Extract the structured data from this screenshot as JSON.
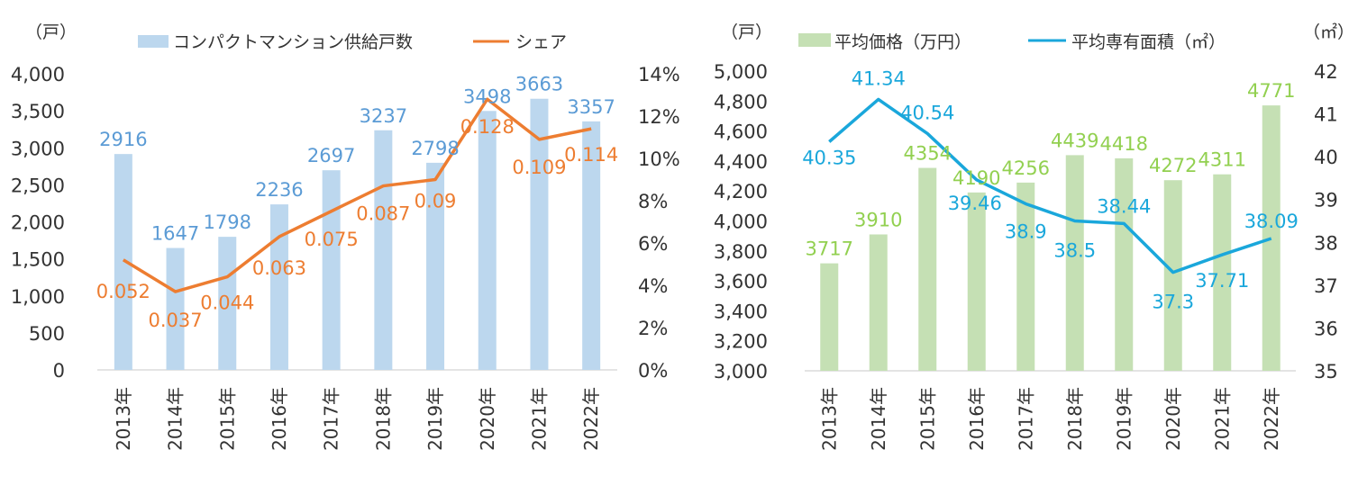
{
  "chart_data": [
    {
      "type": "bar+line",
      "categories": [
        "2013年",
        "2014年",
        "2015年",
        "2016年",
        "2017年",
        "2018年",
        "2019年",
        "2020年",
        "2021年",
        "2022年"
      ],
      "left_unit": "（戸）",
      "left_ticks": [
        "4,000",
        "3,500",
        "3,000",
        "2,500",
        "2,000",
        "1,500",
        "1,000",
        "500",
        "0"
      ],
      "left_ylim": [
        0,
        4000
      ],
      "right_ticks": [
        "14%",
        "12%",
        "10%",
        "8%",
        "6%",
        "4%",
        "2%",
        "0%"
      ],
      "right_ylim": [
        0,
        0.14
      ],
      "series": [
        {
          "name": "コンパクトマンション供給戸数",
          "type": "bar",
          "axis": "left",
          "color": "#bcd7ee",
          "label_color": "#5b9bd5",
          "values": [
            2916,
            1647,
            1798,
            2236,
            2697,
            3237,
            2798,
            3498,
            3663,
            3357
          ],
          "labels": [
            "2916",
            "1647",
            "1798",
            "2236",
            "2697",
            "3237",
            "2798",
            "3498",
            "3663",
            "3357"
          ]
        },
        {
          "name": "シェア",
          "type": "line",
          "axis": "right",
          "color": "#ed7d31",
          "label_color": "#ed7d31",
          "values": [
            0.052,
            0.037,
            0.044,
            0.063,
            0.075,
            0.087,
            0.09,
            0.128,
            0.109,
            0.114
          ],
          "labels": [
            "0.052",
            "0.037",
            "0.044",
            "0.063",
            "0.075",
            "0.087",
            "0.09",
            "0.128",
            "0.109",
            "0.114"
          ]
        }
      ],
      "grid": false,
      "legend_placement": "top"
    },
    {
      "type": "bar+line",
      "categories": [
        "2013年",
        "2014年",
        "2015年",
        "2016年",
        "2017年",
        "2018年",
        "2019年",
        "2020年",
        "2021年",
        "2022年"
      ],
      "left_unit": "（戸）",
      "right_unit": "（㎡）",
      "left_ticks": [
        "5,000",
        "4,800",
        "4,600",
        "4,400",
        "4,200",
        "4,000",
        "3,800",
        "3,600",
        "3,400",
        "3,200",
        "3,000"
      ],
      "left_ylim": [
        3000,
        5000
      ],
      "right_ticks": [
        "42",
        "41",
        "40",
        "39",
        "38",
        "37",
        "36",
        "35"
      ],
      "right_ylim": [
        35,
        42
      ],
      "series": [
        {
          "name": "平均価格（万円）",
          "type": "bar",
          "axis": "left",
          "color": "#c5e0b4",
          "label_color": "#92d050",
          "values": [
            3717,
            3910,
            4354,
            4190,
            4256,
            4439,
            4418,
            4272,
            4311,
            4771
          ],
          "labels": [
            "3717",
            "3910",
            "4354",
            "4190",
            "4256",
            "4439",
            "4418",
            "4272",
            "4311",
            "4771"
          ]
        },
        {
          "name": "平均専有面積（㎡）",
          "type": "line",
          "axis": "right",
          "color": "#1aa7db",
          "label_color": "#1aa7db",
          "values": [
            40.35,
            41.34,
            40.54,
            39.46,
            38.9,
            38.5,
            38.44,
            37.3,
            37.71,
            38.09
          ],
          "labels": [
            "40.35",
            "41.34",
            "40.54",
            "39.46",
            "38.9",
            "38.5",
            "38.44",
            "37.3",
            "37.71",
            "38.09"
          ]
        }
      ],
      "grid": false,
      "legend_placement": "top"
    }
  ]
}
